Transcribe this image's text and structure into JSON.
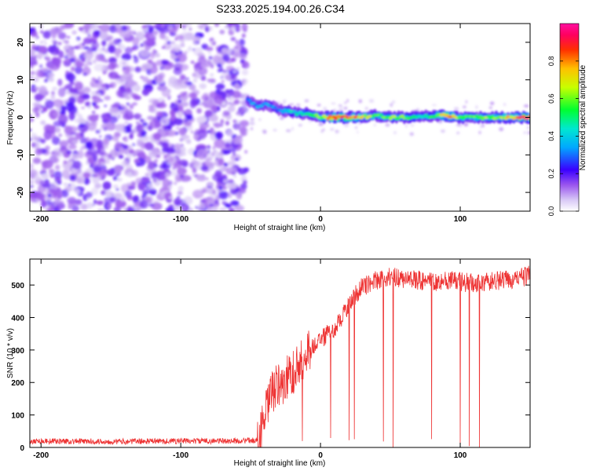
{
  "title": "S233.2025.194.00.26.C34",
  "chart_data": [
    {
      "type": "heatmap",
      "xlabel": "Height of straight line (km)",
      "ylabel": "Frequency (Hz)",
      "xlim": [
        -208,
        150
      ],
      "ylim": [
        -25,
        25
      ],
      "xticks": [
        -200,
        -100,
        0,
        100
      ],
      "yticks": [
        -20,
        -10,
        0,
        10,
        20
      ],
      "colorbar": {
        "label": "Normalized spectral amplitude",
        "range": [
          0,
          1
        ],
        "ticks": [
          "0.0",
          "0.2",
          "0.4",
          "0.6",
          "0.8"
        ]
      },
      "noise_region_x": [
        -208,
        -53
      ],
      "signal_ridge": {
        "x": [
          -52,
          -45,
          -38,
          -30,
          -22,
          -15,
          -8,
          0,
          10,
          20,
          30,
          40,
          50,
          60,
          70,
          80,
          90,
          100,
          110,
          120,
          130,
          140,
          150
        ],
        "freq": [
          4.5,
          3.0,
          3.5,
          2.0,
          1.5,
          1.0,
          1.0,
          0,
          0,
          0,
          0,
          0.5,
          0,
          0,
          0,
          0.5,
          0.5,
          0,
          0,
          0,
          0,
          0,
          0
        ],
        "amplitude": [
          0.3,
          0.35,
          0.35,
          0.3,
          0.4,
          0.45,
          0.5,
          0.6,
          0.9,
          0.85,
          0.7,
          0.55,
          0.6,
          0.55,
          0.5,
          0.5,
          0.85,
          0.6,
          0.55,
          0.6,
          0.65,
          0.8,
          0.9
        ]
      }
    },
    {
      "type": "line",
      "xlabel": "Height of straight line (km)",
      "ylabel": "SNR (10 * v/v)",
      "xlim": [
        -208,
        150
      ],
      "ylim": [
        0,
        580
      ],
      "xticks": [
        -200,
        -100,
        0,
        100
      ],
      "yticks": [
        0,
        100,
        200,
        300,
        400,
        500
      ],
      "series": [
        {
          "color": "#ee3333",
          "x": [
            -208,
            -150,
            -100,
            -60,
            -45,
            -40,
            -35,
            -30,
            -25,
            -20,
            -15,
            -10,
            -5,
            0,
            5,
            10,
            15,
            20,
            25,
            30,
            40,
            50,
            60,
            70,
            80,
            90,
            100,
            110,
            120,
            130,
            140,
            150
          ],
          "y": [
            20,
            18,
            20,
            20,
            22,
            90,
            170,
            190,
            210,
            230,
            260,
            290,
            310,
            330,
            350,
            360,
            400,
            440,
            470,
            495,
            515,
            525,
            520,
            515,
            510,
            515,
            510,
            505,
            510,
            515,
            520,
            530
          ]
        }
      ]
    }
  ]
}
